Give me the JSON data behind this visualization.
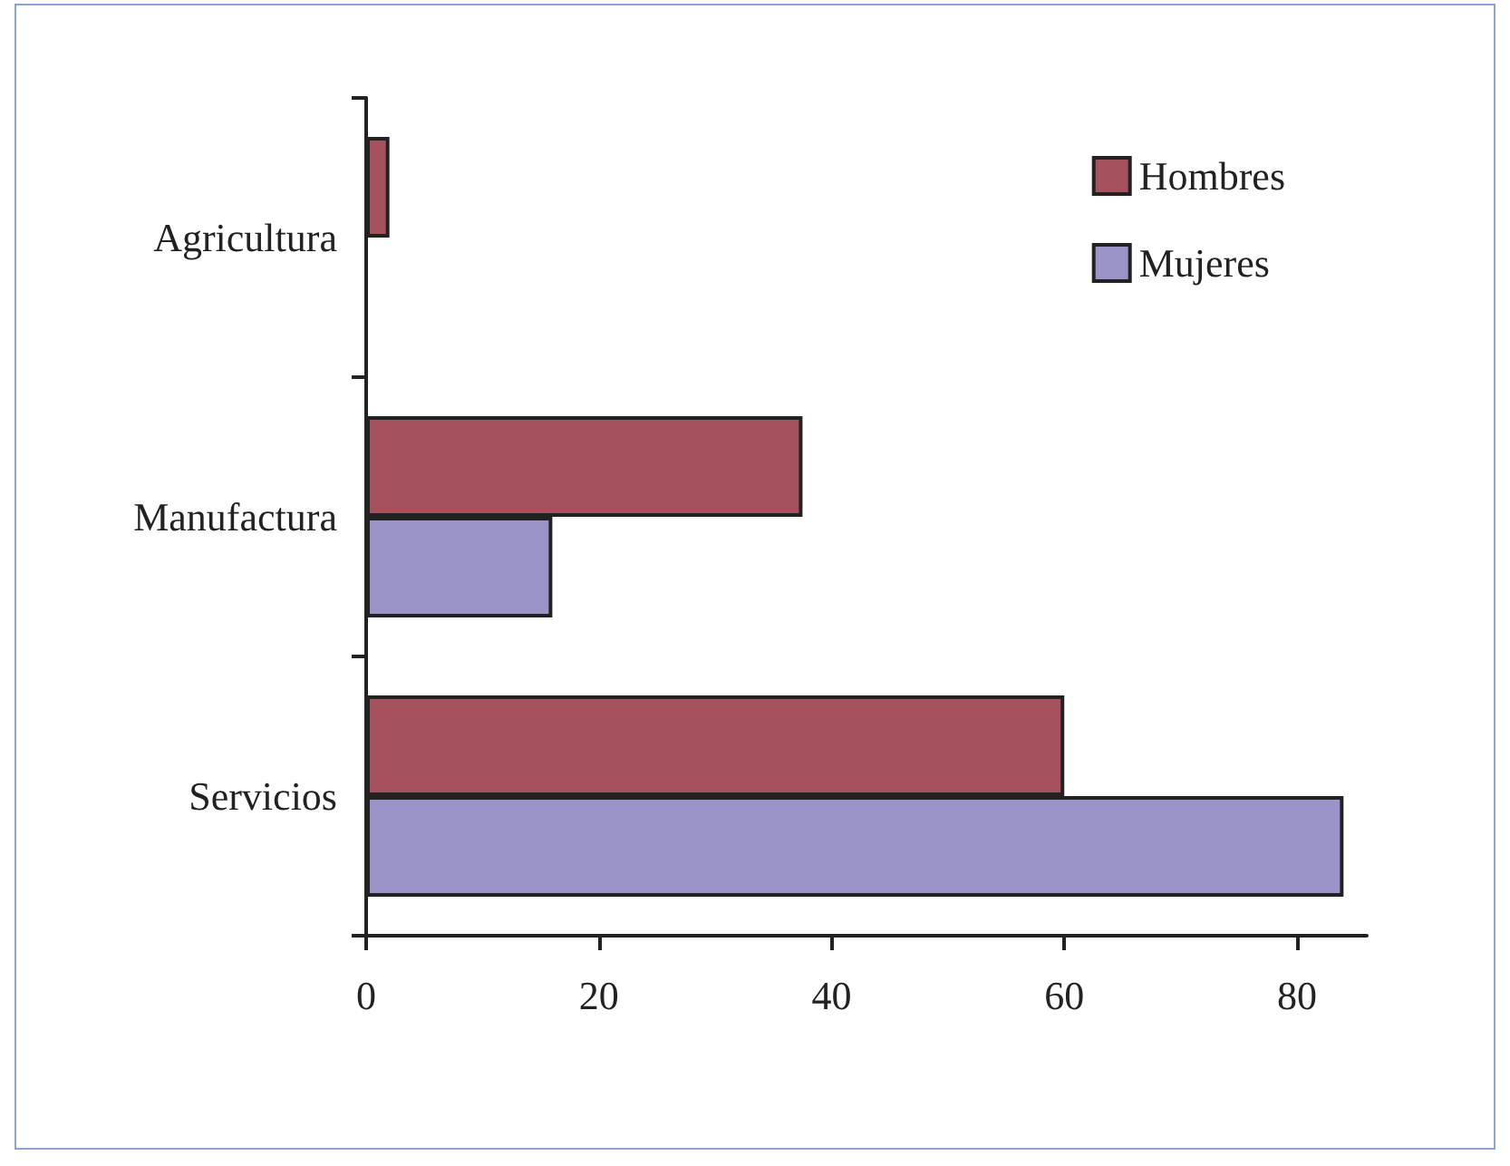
{
  "chart_data": {
    "type": "bar",
    "orientation": "horizontal",
    "categories": [
      "Agricultura",
      "Manufactura",
      "Servicios"
    ],
    "series": [
      {
        "name": "Hombres",
        "color": "#a6525e",
        "values": [
          2,
          37.5,
          60
        ]
      },
      {
        "name": "Mujeres",
        "color": "#9b94c8",
        "values": [
          null,
          16,
          84
        ]
      }
    ],
    "xlim": [
      0,
      86
    ],
    "xticks": [
      0,
      20,
      40,
      60,
      80
    ],
    "grid": false,
    "legend": "top right"
  }
}
